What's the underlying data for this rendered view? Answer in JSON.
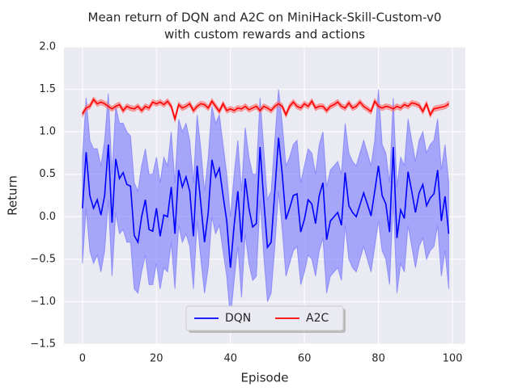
{
  "chart_data": {
    "type": "line",
    "title": [
      "Mean return of DQN and A2C on MiniHack-Skill-Custom-v0",
      "with custom rewards and actions"
    ],
    "xlabel": "Episode",
    "ylabel": "Return",
    "xlim": [
      -5,
      103.5
    ],
    "xticks": [
      0,
      20,
      40,
      60,
      80,
      100
    ],
    "ylim": [
      -1.5,
      2
    ],
    "yticks": [
      {
        "value": -1.5,
        "label": "−1.5"
      },
      {
        "value": -1,
        "label": "−1.0"
      },
      {
        "value": -0.5,
        "label": "−0.5"
      },
      {
        "value": 0,
        "label": "0.0"
      },
      0.5,
      {
        "value": 1,
        "label": "1.0"
      },
      1.5,
      {
        "value": 2,
        "label": "2.0"
      }
    ],
    "grid": true,
    "legend": "lower center",
    "x": [
      0,
      1,
      2,
      3,
      4,
      5,
      6,
      7,
      8,
      9,
      10,
      11,
      12,
      13,
      14,
      15,
      16,
      17,
      18,
      19,
      20,
      21,
      22,
      23,
      24,
      25,
      26,
      27,
      28,
      29,
      30,
      31,
      32,
      33,
      34,
      35,
      36,
      37,
      38,
      39,
      40,
      41,
      42,
      43,
      44,
      45,
      46,
      47,
      48,
      49,
      50,
      51,
      52,
      53,
      54,
      55,
      56,
      57,
      58,
      59,
      60,
      61,
      62,
      63,
      64,
      65,
      66,
      67,
      68,
      69,
      70,
      71,
      72,
      73,
      74,
      75,
      76,
      77,
      78,
      79,
      80,
      81,
      82,
      83,
      84,
      85,
      86,
      87,
      88,
      89,
      90,
      91,
      92,
      93,
      94,
      95,
      96,
      97,
      98,
      99
    ],
    "series": [
      {
        "name": "DQN",
        "color": "#0000ff",
        "band_color": "#6b6bff",
        "values": [
          0.1,
          0.76,
          0.25,
          0.1,
          0.2,
          0.02,
          0.25,
          0.85,
          -0.07,
          0.68,
          0.45,
          0.52,
          0.38,
          0.36,
          -0.22,
          -0.3,
          0.0,
          0.2,
          -0.15,
          -0.17,
          0.1,
          -0.23,
          0.02,
          0.0,
          0.35,
          -0.2,
          0.55,
          0.35,
          0.47,
          0.3,
          -0.23,
          0.6,
          0.15,
          -0.3,
          0.05,
          0.67,
          0.47,
          0.57,
          0.25,
          -0.05,
          -0.6,
          -0.1,
          0.3,
          -0.3,
          0.45,
          0.1,
          -0.12,
          -0.08,
          0.82,
          0.2,
          -0.36,
          -0.3,
          0.3,
          0.93,
          0.5,
          -0.03,
          0.1,
          0.25,
          0.27,
          -0.18,
          -0.03,
          0.2,
          0.15,
          -0.08,
          0.25,
          0.4,
          -0.27,
          -0.05,
          0.0,
          0.05,
          -0.1,
          0.52,
          0.13,
          0.05,
          0.0,
          0.14,
          0.28,
          0.15,
          0.01,
          0.3,
          0.6,
          0.25,
          0.15,
          -0.18,
          0.82,
          -0.25,
          0.08,
          -0.02,
          0.53,
          0.3,
          0.05,
          0.28,
          0.38,
          0.13,
          0.22,
          0.27,
          0.55,
          -0.05,
          0.24,
          -0.2
        ],
        "upper": [
          0.7,
          1.4,
          0.9,
          0.8,
          0.8,
          0.6,
          0.9,
          1.45,
          0.5,
          1.3,
          1.1,
          1.1,
          1.0,
          0.95,
          0.4,
          0.3,
          0.6,
          0.8,
          0.5,
          0.5,
          0.7,
          0.4,
          0.7,
          0.6,
          1.0,
          0.4,
          1.15,
          1.0,
          1.1,
          0.9,
          0.4,
          1.2,
          0.8,
          0.3,
          0.7,
          1.3,
          1.1,
          1.2,
          0.85,
          0.5,
          0.0,
          0.5,
          0.9,
          0.3,
          1.05,
          0.7,
          0.5,
          0.5,
          1.4,
          0.8,
          0.2,
          0.3,
          0.9,
          1.5,
          1.1,
          0.6,
          0.7,
          0.85,
          0.9,
          0.4,
          0.6,
          0.8,
          0.75,
          0.5,
          0.85,
          1.0,
          0.35,
          0.55,
          0.6,
          0.65,
          0.5,
          1.1,
          0.75,
          0.65,
          0.6,
          0.75,
          0.9,
          0.75,
          0.6,
          0.9,
          1.5,
          0.85,
          0.75,
          0.4,
          1.4,
          0.35,
          0.7,
          0.6,
          1.15,
          0.9,
          0.65,
          0.9,
          1.0,
          0.75,
          0.85,
          0.9,
          1.15,
          0.55,
          0.85,
          0.4
        ],
        "lower": [
          -0.55,
          0.1,
          -0.4,
          -0.55,
          -0.45,
          -0.65,
          -0.4,
          0.2,
          -0.7,
          0.05,
          -0.2,
          -0.15,
          -0.3,
          -0.3,
          -0.85,
          -0.9,
          -0.65,
          -0.45,
          -0.8,
          -0.8,
          -0.55,
          -0.85,
          -0.6,
          -0.65,
          -0.3,
          -0.85,
          -0.1,
          -0.3,
          -0.2,
          -0.35,
          -0.85,
          -0.05,
          -0.5,
          -0.9,
          -0.6,
          0.0,
          -0.2,
          -0.1,
          -0.4,
          -0.7,
          -1.2,
          -0.75,
          -0.35,
          -0.95,
          -0.2,
          -0.55,
          -0.75,
          -0.7,
          0.2,
          -0.45,
          -1.0,
          -0.9,
          -0.35,
          0.3,
          -0.15,
          -0.7,
          -0.55,
          -0.4,
          -0.35,
          -0.8,
          -0.65,
          -0.45,
          -0.5,
          -0.7,
          -0.4,
          -0.25,
          -0.9,
          -0.7,
          -0.65,
          -0.6,
          -0.75,
          -0.1,
          -0.5,
          -0.6,
          -0.65,
          -0.5,
          -0.35,
          -0.5,
          -0.65,
          -0.35,
          -0.05,
          -0.4,
          -0.5,
          -0.8,
          0.2,
          -0.9,
          -0.55,
          -0.65,
          -0.1,
          -0.35,
          -0.6,
          -0.35,
          -0.25,
          -0.5,
          -0.4,
          -0.35,
          -0.1,
          -0.7,
          -0.4,
          -0.85
        ]
      },
      {
        "name": "A2C",
        "color": "#ff0000",
        "band_color": "#ff6b6b",
        "values": [
          1.21,
          1.28,
          1.3,
          1.38,
          1.33,
          1.35,
          1.33,
          1.3,
          1.27,
          1.3,
          1.32,
          1.25,
          1.3,
          1.28,
          1.27,
          1.3,
          1.25,
          1.3,
          1.28,
          1.35,
          1.33,
          1.35,
          1.32,
          1.36,
          1.3,
          1.15,
          1.32,
          1.28,
          1.3,
          1.33,
          1.25,
          1.3,
          1.33,
          1.32,
          1.28,
          1.36,
          1.3,
          1.24,
          1.33,
          1.25,
          1.27,
          1.25,
          1.28,
          1.27,
          1.3,
          1.26,
          1.28,
          1.3,
          1.25,
          1.3,
          1.28,
          1.25,
          1.3,
          1.33,
          1.3,
          1.2,
          1.3,
          1.35,
          1.3,
          1.28,
          1.33,
          1.3,
          1.36,
          1.28,
          1.3,
          1.3,
          1.25,
          1.3,
          1.32,
          1.35,
          1.3,
          1.28,
          1.34,
          1.28,
          1.3,
          1.35,
          1.3,
          1.27,
          1.24,
          1.36,
          1.3,
          1.28,
          1.3,
          1.29,
          1.27,
          1.3,
          1.28,
          1.32,
          1.3,
          1.34,
          1.33,
          1.31,
          1.24,
          1.33,
          1.2,
          1.27,
          1.28,
          1.29,
          1.3,
          1.33
        ],
        "upper": [
          1.24,
          1.31,
          1.33,
          1.41,
          1.36,
          1.38,
          1.36,
          1.33,
          1.3,
          1.33,
          1.35,
          1.28,
          1.33,
          1.31,
          1.3,
          1.33,
          1.28,
          1.33,
          1.31,
          1.38,
          1.36,
          1.38,
          1.35,
          1.39,
          1.33,
          1.18,
          1.35,
          1.31,
          1.33,
          1.36,
          1.28,
          1.33,
          1.36,
          1.35,
          1.31,
          1.39,
          1.33,
          1.27,
          1.36,
          1.28,
          1.3,
          1.28,
          1.31,
          1.3,
          1.33,
          1.29,
          1.31,
          1.33,
          1.28,
          1.33,
          1.31,
          1.28,
          1.33,
          1.36,
          1.33,
          1.23,
          1.33,
          1.38,
          1.33,
          1.31,
          1.36,
          1.33,
          1.39,
          1.31,
          1.33,
          1.33,
          1.28,
          1.33,
          1.35,
          1.38,
          1.33,
          1.31,
          1.37,
          1.31,
          1.33,
          1.38,
          1.33,
          1.3,
          1.27,
          1.39,
          1.33,
          1.31,
          1.33,
          1.32,
          1.3,
          1.33,
          1.31,
          1.35,
          1.33,
          1.37,
          1.36,
          1.34,
          1.27,
          1.36,
          1.23,
          1.3,
          1.31,
          1.32,
          1.33,
          1.36
        ],
        "lower": [
          1.18,
          1.25,
          1.27,
          1.35,
          1.3,
          1.32,
          1.3,
          1.27,
          1.24,
          1.27,
          1.29,
          1.22,
          1.27,
          1.25,
          1.24,
          1.27,
          1.22,
          1.27,
          1.25,
          1.32,
          1.3,
          1.32,
          1.29,
          1.33,
          1.27,
          1.12,
          1.29,
          1.25,
          1.27,
          1.3,
          1.22,
          1.27,
          1.3,
          1.29,
          1.25,
          1.33,
          1.27,
          1.21,
          1.3,
          1.22,
          1.24,
          1.22,
          1.25,
          1.24,
          1.27,
          1.23,
          1.25,
          1.27,
          1.22,
          1.27,
          1.25,
          1.22,
          1.27,
          1.3,
          1.27,
          1.17,
          1.27,
          1.32,
          1.27,
          1.25,
          1.3,
          1.27,
          1.33,
          1.25,
          1.27,
          1.27,
          1.22,
          1.27,
          1.29,
          1.32,
          1.27,
          1.25,
          1.31,
          1.25,
          1.27,
          1.32,
          1.27,
          1.24,
          1.21,
          1.33,
          1.27,
          1.25,
          1.27,
          1.26,
          1.24,
          1.27,
          1.25,
          1.29,
          1.27,
          1.31,
          1.3,
          1.28,
          1.21,
          1.3,
          1.17,
          1.24,
          1.25,
          1.26,
          1.27,
          1.3
        ]
      }
    ]
  }
}
